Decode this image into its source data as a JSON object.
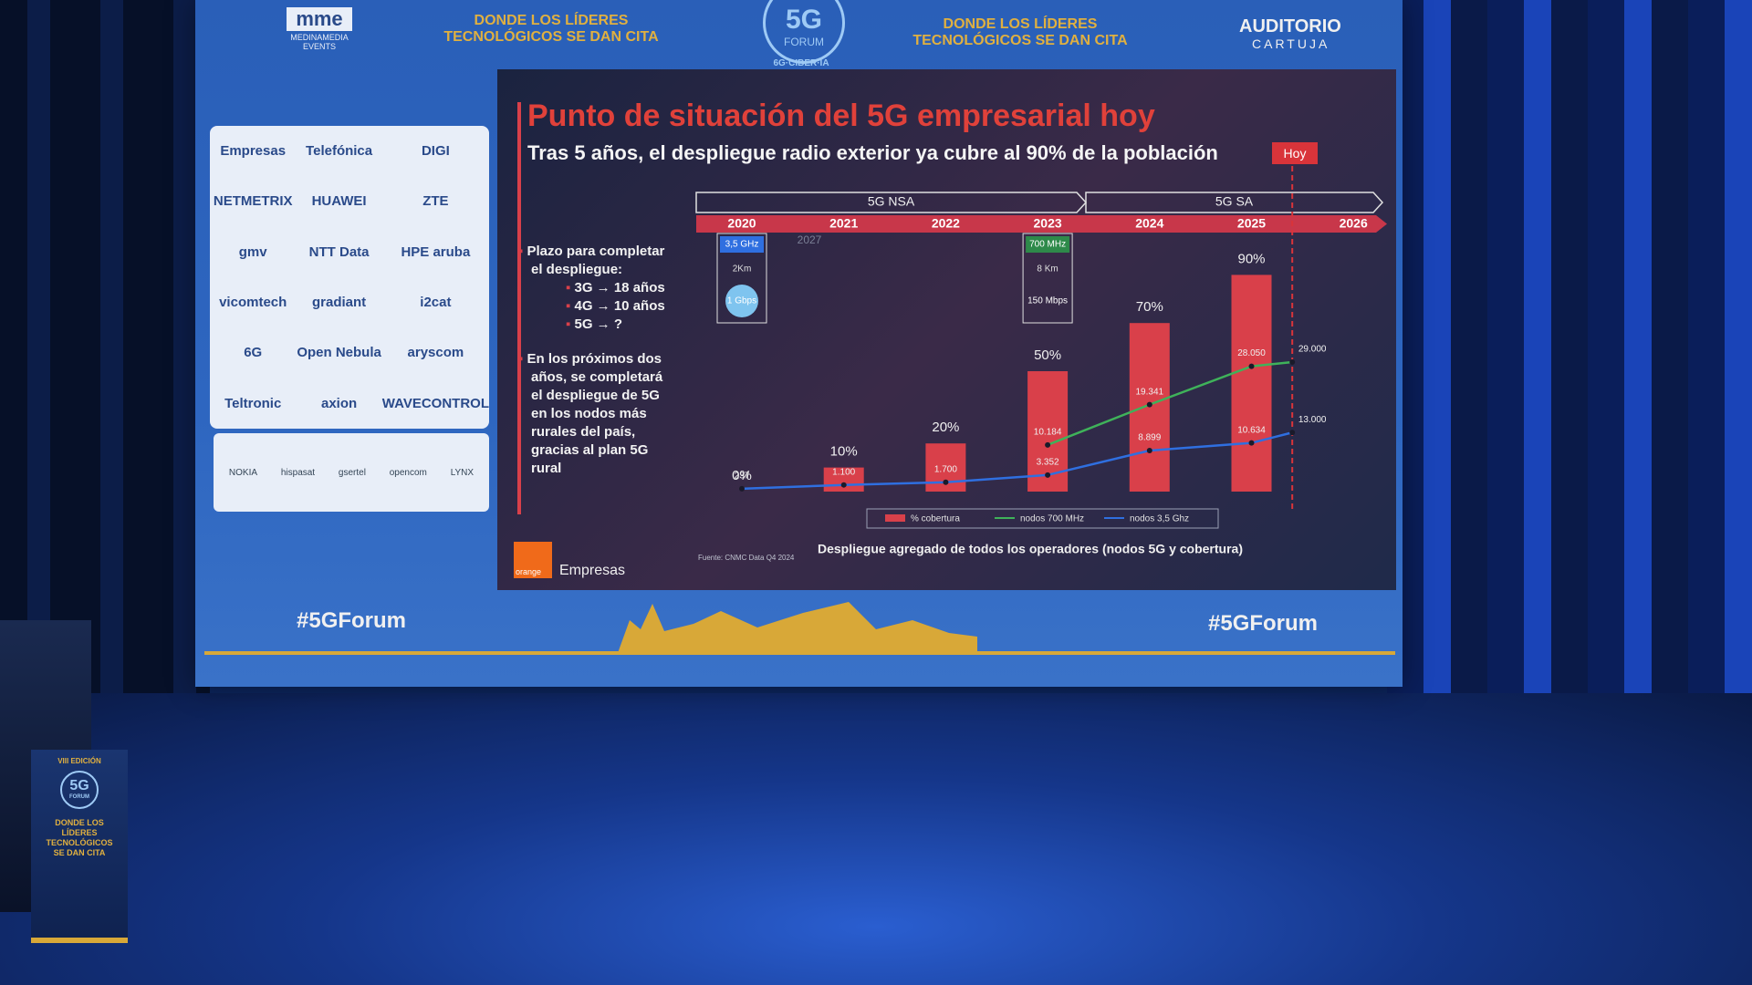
{
  "header": {
    "left_logo": "mme",
    "left_logo_sub": "MEDINAMEDIA EVENTS",
    "tagline_left": "DONDE LOS LÍDERES TECNOLÓGICOS SE DAN CITA",
    "center_logo": "5G",
    "center_logo_sub": "FORUM",
    "center_caption": "6G·CIBER·IA",
    "tagline_right": "DONDE LOS LÍDERES TECNOLÓGICOS SE DAN CITA",
    "right_logo": "AUDITORIO",
    "right_logo_sub": "CARTUJA"
  },
  "sponsors": [
    "Empresas",
    "Telefónica",
    "DIGI",
    "NETMETRIX",
    "HUAWEI",
    "ZTE",
    "gmv",
    "NTT Data",
    "HPE aruba",
    "vicomtech",
    "gradiant",
    "i2cat",
    "6G",
    "Open Nebula",
    "aryscom",
    "Teltronic",
    "axion",
    "WAVECONTROL"
  ],
  "partners": [
    "NOKIA",
    "hispasat",
    "gsertel",
    "opencom",
    "LYNX"
  ],
  "slide": {
    "title": "Punto de situación del 5G empresarial hoy",
    "subtitle": "Tras 5 años, el despliegue radio exterior ya cubre al 90% de la población",
    "today_label": "Hoy",
    "bullets": [
      {
        "text": "Plazo para completar el despliegue:",
        "sub": [
          "3G → 18 años",
          "4G → 10 años",
          "5G → ?"
        ]
      },
      {
        "text": "En los próximos dos años, se completará el despliegue de 5G en los nodos más rurales del país, gracias al plan 5G rural",
        "sub": []
      }
    ],
    "source": "Fuente: CNMC Data Q4 2024",
    "brand_logo": "orange",
    "brand": "Empresas"
  },
  "chart_data": {
    "type": "bar",
    "caption": "Despliegue agregado de todos los operadores (nodos 5G y cobertura)",
    "categories": [
      "2020",
      "2021",
      "2022",
      "2023",
      "2024",
      "2025",
      "2026"
    ],
    "phases": [
      "5G NSA",
      "5G SA"
    ],
    "faded_label": "2027",
    "today": 2025.4,
    "series": [
      {
        "name": "% cobertura",
        "color": "#d9404a",
        "values": [
          0,
          10,
          20,
          50,
          70,
          90,
          null
        ],
        "value_labels": [
          "0%",
          "10%",
          "20%",
          "50%",
          "70%",
          "90%",
          null
        ]
      },
      {
        "name": "nodos 700 MHz",
        "type": "line",
        "color": "#3fb25a",
        "x": [
          2023,
          2024,
          2025,
          2025.4
        ],
        "values": [
          10184,
          19341,
          28050,
          29000
        ],
        "value_labels": [
          "10.184",
          "19.341",
          "28.050",
          "29.000"
        ]
      },
      {
        "name": "nodos 3,5 Ghz",
        "type": "line",
        "color": "#2f6fe0",
        "x": [
          2020,
          2021,
          2022,
          2023,
          2024,
          2025,
          2025.4
        ],
        "values": [
          237,
          1100,
          1700,
          3352,
          8899,
          10634,
          13000
        ],
        "value_labels": [
          "237",
          "1.100",
          "1.700",
          "3.352",
          "8.899",
          "10.634",
          "13.000"
        ]
      }
    ],
    "annotations": [
      {
        "category": "2020",
        "band": "3,5 GHz",
        "range": "2Km",
        "speed": "1 Gbps"
      },
      {
        "category": "2023",
        "band": "700 MHz",
        "range": "8 Km",
        "speed": "150 Mbps"
      }
    ]
  },
  "footer": {
    "hashtag_left": "#5GForum",
    "hashtag_right": "#5GForum"
  },
  "podium": {
    "edition": "VIII EDICIÓN",
    "logo": "5G",
    "logo_sub": "FORUM",
    "tagline": "DONDE LOS LÍDERES TECNOLÓGICOS SE DAN CITA"
  }
}
